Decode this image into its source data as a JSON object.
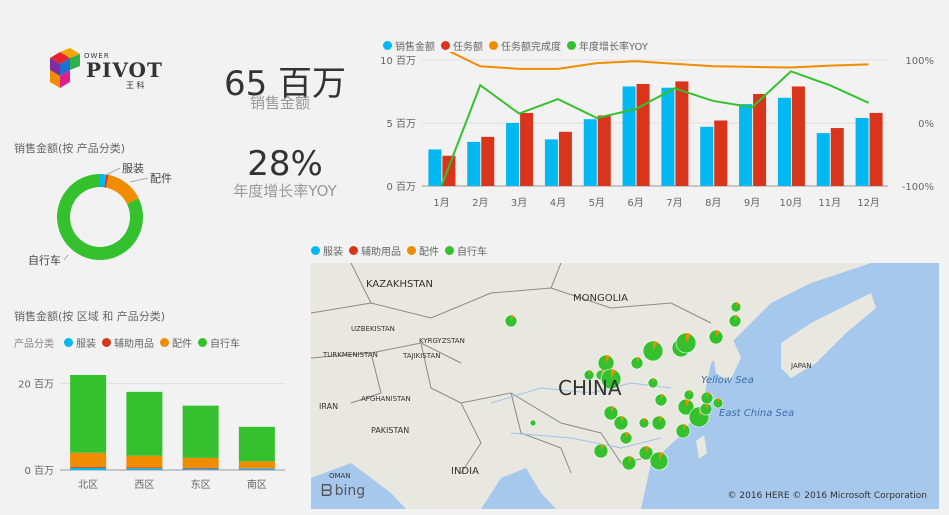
{
  "logo": {
    "line1": "OWER",
    "line2": "PIVOT",
    "line3": "王 科"
  },
  "kpi": {
    "sales_value": "65 百万",
    "sales_label": "销售金额",
    "growth_value": "28%",
    "growth_label": "年度增长率YOY"
  },
  "donut": {
    "title": "销售金额(按 产品分类)",
    "labels": {
      "clothing": "服装",
      "accessories": "配件",
      "bikes": "自行车"
    }
  },
  "categories": [
    {
      "name": "服装",
      "color": "#01b8f1"
    },
    {
      "name": "辅助用品",
      "color": "#d9351c"
    },
    {
      "name": "配件",
      "color": "#f08c00"
    },
    {
      "name": "自行车",
      "color": "#35c12e"
    }
  ],
  "monthly_legend": [
    {
      "name": "销售金额",
      "color": "#01b8f1"
    },
    {
      "name": "任务额",
      "color": "#d9351c"
    },
    {
      "name": "任务额完成度",
      "color": "#f08c00"
    },
    {
      "name": "年度增长率YOY",
      "color": "#35c12e"
    }
  ],
  "region": {
    "title": "销售金额(按 区域 和 产品分类)",
    "legend_title": "产品分类"
  },
  "map": {
    "labels": [
      "KAZAKHSTAN",
      "MONGOLIA",
      "UZBEKISTAN",
      "KYRGYZSTAN",
      "TURKMENISTAN",
      "TAJIKISTAN",
      "AFGHANISTAN",
      "IRAN",
      "PAKISTAN",
      "OMAN",
      "INDIA",
      "CHINA",
      "Yellow Sea",
      "East China Sea",
      "JAPAN"
    ],
    "brand": "bing",
    "copyright": "© 2016 HERE  © 2016 Microsoft Corporation"
  },
  "chart_data": [
    {
      "type": "pie",
      "title": "销售金额(按 产品分类)",
      "categories": [
        "服装",
        "辅助用品",
        "配件",
        "自行车"
      ],
      "values": [
        1.5,
        0.6,
        9.5,
        53.4
      ],
      "colors": [
        "#01b8f1",
        "#d9351c",
        "#f08c00",
        "#35c12e"
      ]
    },
    {
      "type": "bar",
      "categories": [
        "1月",
        "2月",
        "3月",
        "4月",
        "5月",
        "6月",
        "7月",
        "8月",
        "9月",
        "10月",
        "11月",
        "12月"
      ],
      "series": [
        {
          "name": "销售金额",
          "values": [
            2.9,
            3.5,
            5.0,
            3.7,
            5.3,
            7.9,
            7.8,
            4.7,
            6.5,
            7.0,
            4.2,
            5.4
          ]
        },
        {
          "name": "任务额",
          "values": [
            2.4,
            3.9,
            5.8,
            4.3,
            5.6,
            8.1,
            8.3,
            5.2,
            7.3,
            7.9,
            4.6,
            5.8
          ]
        }
      ],
      "line_series": [
        {
          "name": "任务额完成度",
          "values": [
            120,
            90,
            86,
            86,
            95,
            98,
            94,
            90,
            89,
            88,
            91,
            93
          ]
        },
        {
          "name": "年度增长率YOY",
          "values": [
            -100,
            60,
            15,
            38,
            8,
            22,
            55,
            35,
            25,
            82,
            60,
            32
          ]
        }
      ],
      "ylim": [
        0,
        10
      ],
      "y_ticks": [
        "0 百万",
        "5 百万",
        "10 百万"
      ],
      "y2lim": [
        -100,
        100
      ],
      "y2_ticks": [
        "-100%",
        "0%",
        "100%"
      ],
      "legend": "top-left"
    },
    {
      "type": "bar",
      "stacked": true,
      "title": "销售金额(按 区域 和 产品分类)",
      "categories": [
        "北区",
        "西区",
        "东区",
        "南区"
      ],
      "series": [
        {
          "name": "服装",
          "values": [
            0.5,
            0.4,
            0.3,
            0.3
          ]
        },
        {
          "name": "辅助用品",
          "values": [
            0.2,
            0.2,
            0.2,
            0.1
          ]
        },
        {
          "name": "配件",
          "values": [
            3.3,
            2.7,
            2.3,
            1.6
          ]
        },
        {
          "name": "自行车",
          "values": [
            18.0,
            14.8,
            12.1,
            8.0
          ]
        }
      ],
      "ylim": [
        0,
        22
      ],
      "y_ticks": [
        "0 百万",
        "20 百万"
      ],
      "legend": "top-left"
    }
  ]
}
